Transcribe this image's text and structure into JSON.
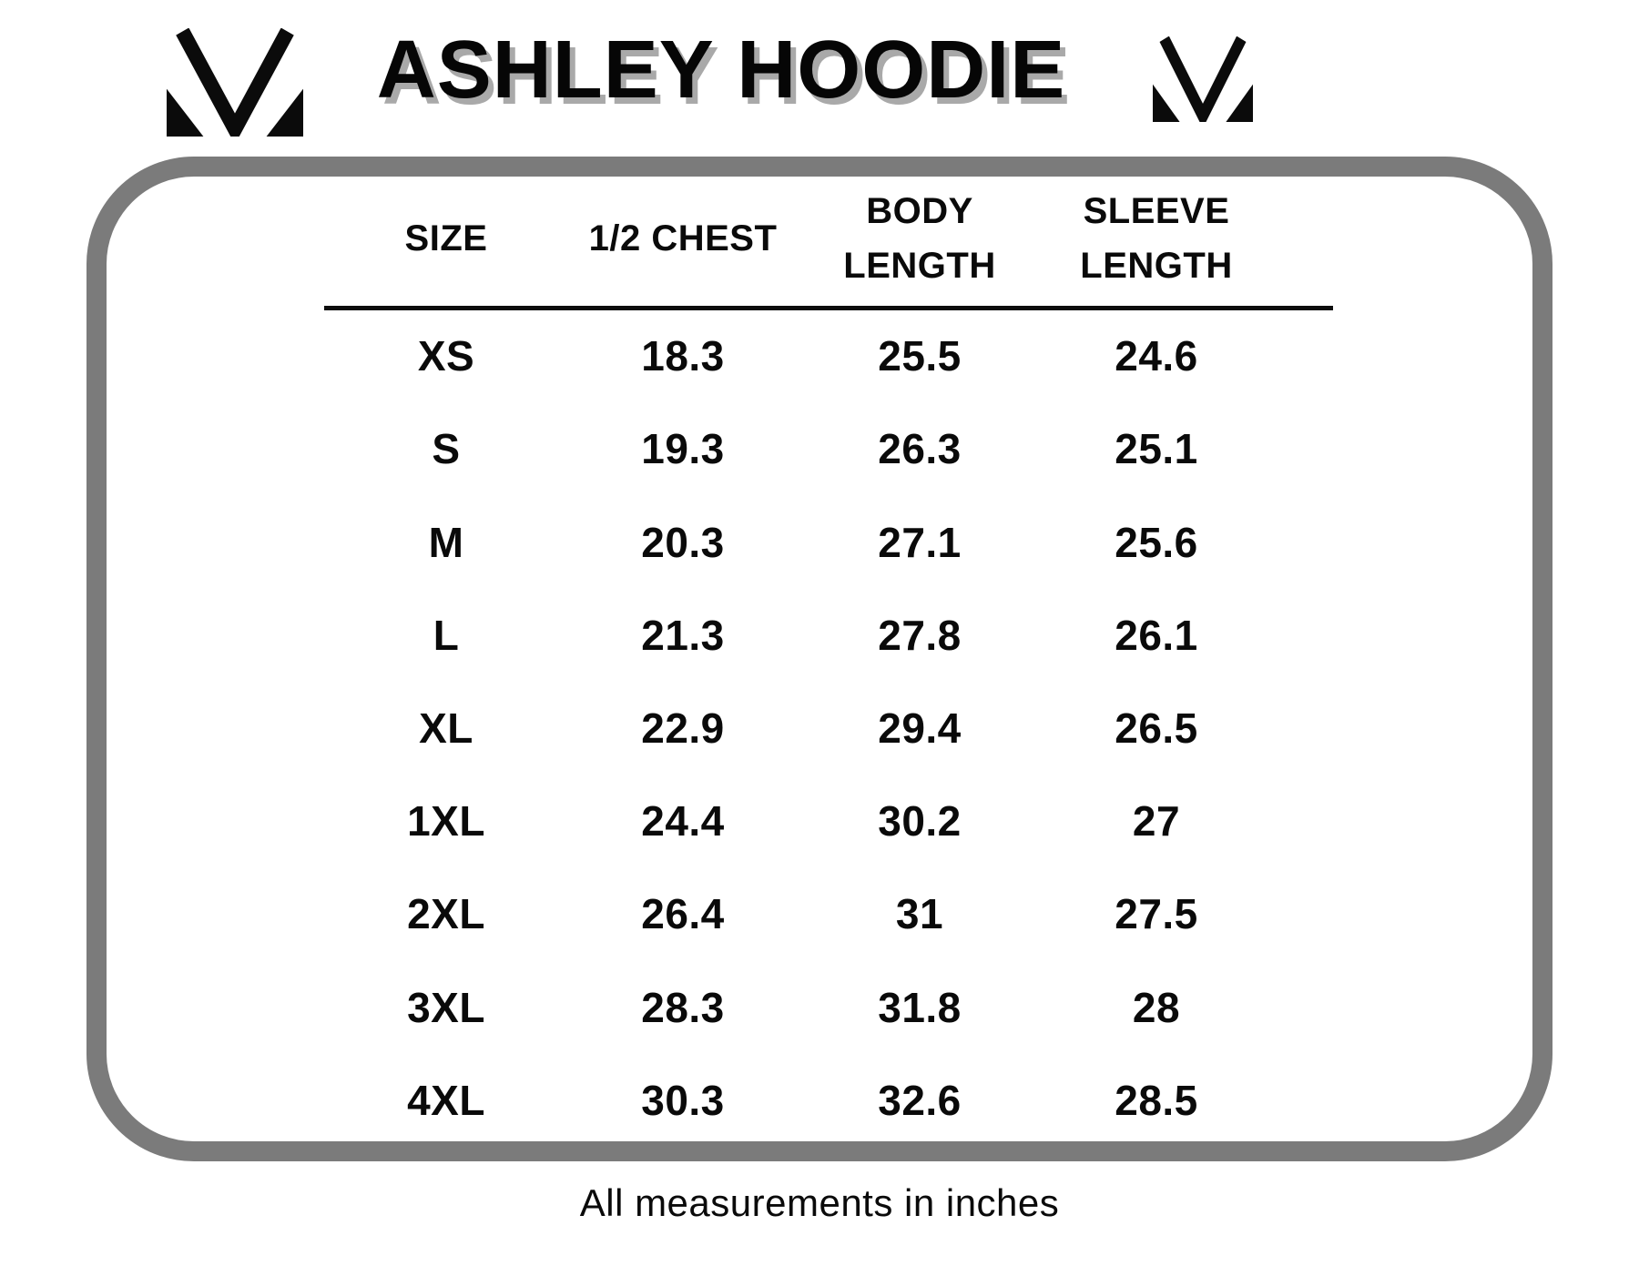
{
  "title": "ASHLEY HOODIE",
  "footnote": "All measurements in inches",
  "icons": {
    "left_logo": "m-monogram",
    "right_logo": "m-monogram"
  },
  "colors": {
    "background": "#ffffff",
    "text": "#0a0a0a",
    "title_shadow": "#a9a9a9",
    "frame_border": "#7b7b7b",
    "header_rule": "#0d0d0d"
  },
  "chart_data": {
    "type": "table",
    "title": "ASHLEY HOODIE",
    "units": "inches",
    "columns": [
      {
        "label": "SIZE",
        "lines": [
          "SIZE"
        ]
      },
      {
        "label": "1/2 CHEST",
        "lines": [
          "1/2 CHEST"
        ]
      },
      {
        "label": "BODY LENGTH",
        "lines": [
          "BODY",
          "LENGTH"
        ]
      },
      {
        "label": "SLEEVE LENGTH",
        "lines": [
          "SLEEVE",
          "LENGTH"
        ]
      }
    ],
    "rows": [
      [
        "XS",
        "18.3",
        "25.5",
        "24.6"
      ],
      [
        "S",
        "19.3",
        "26.3",
        "25.1"
      ],
      [
        "M",
        "20.3",
        "27.1",
        "25.6"
      ],
      [
        "L",
        "21.3",
        "27.8",
        "26.1"
      ],
      [
        "XL",
        "22.9",
        "29.4",
        "26.5"
      ],
      [
        "1XL",
        "24.4",
        "30.2",
        "27"
      ],
      [
        "2XL",
        "26.4",
        "31",
        "27.5"
      ],
      [
        "3XL",
        "28.3",
        "31.8",
        "28"
      ],
      [
        "4XL",
        "30.3",
        "32.6",
        "28.5"
      ]
    ],
    "footnote": "All measurements in inches"
  }
}
